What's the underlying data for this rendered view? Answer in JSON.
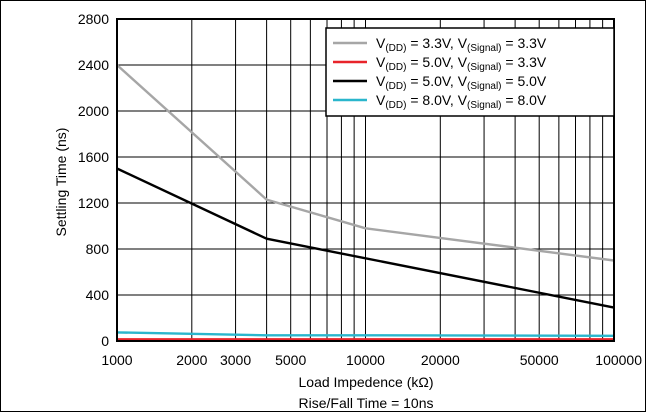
{
  "chart_data": {
    "type": "line",
    "x_scale": "log",
    "xlabel": "Load Impedence (kΩ)",
    "ylabel": "Settling Time (ns)",
    "caption": "Rise/Fall Time = 10ns",
    "xlim": [
      1000,
      100000
    ],
    "ylim": [
      0,
      2800
    ],
    "x_ticks": [
      1000,
      2000,
      3000,
      5000,
      10000,
      20000,
      50000,
      100000
    ],
    "x_tick_labels": [
      "1000",
      "2000",
      "3000",
      "5000",
      "10000",
      "20000",
      "50000",
      "100000"
    ],
    "y_ticks": [
      0,
      400,
      800,
      1200,
      1600,
      2000,
      2400,
      2800
    ],
    "y_tick_labels": [
      "0",
      "400",
      "800",
      "1200",
      "1600",
      "2000",
      "2400",
      "2800"
    ],
    "grid": true,
    "legend_position": "top-right",
    "series": [
      {
        "name": "V(DD) = 3.3V, V(Signal) = 3.3V",
        "legend": {
          "a": "V",
          "b": "(DD)",
          "c": " = 3.3V, V",
          "d": "(Signal)",
          "e": " = 3.3V"
        },
        "color": "#a6a6a6",
        "x": [
          1000,
          4000,
          10000,
          100000
        ],
        "y": [
          2400,
          1230,
          980,
          700
        ]
      },
      {
        "name": "V(DD) = 5.0V, V(Signal) = 3.3V",
        "legend": {
          "a": "V",
          "b": "(DD)",
          "c": " = 5.0V, V",
          "d": "(Signal)",
          "e": " = 3.3V"
        },
        "color": "#e8242a",
        "x": [
          1000,
          100000
        ],
        "y": [
          15,
          15
        ]
      },
      {
        "name": "V(DD) = 5.0V, V(Signal) = 5.0V",
        "legend": {
          "a": "V",
          "b": "(DD)",
          "c": " = 5.0V, V",
          "d": "(Signal)",
          "e": " = 5.0V"
        },
        "color": "#000000",
        "x": [
          1000,
          4000,
          100000
        ],
        "y": [
          1500,
          890,
          290
        ]
      },
      {
        "name": "V(DD) = 8.0V, V(Signal) = 8.0V",
        "legend": {
          "a": "V",
          "b": "(DD)",
          "c": " = 8.0V, V",
          "d": "(Signal)",
          "e": " = 8.0V"
        },
        "color": "#2ab6cc",
        "x": [
          1000,
          4000,
          10000,
          100000
        ],
        "y": [
          75,
          50,
          50,
          45
        ]
      }
    ]
  }
}
